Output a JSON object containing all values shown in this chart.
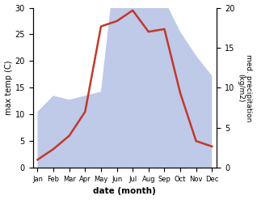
{
  "months": [
    "Jan",
    "Feb",
    "Mar",
    "Apr",
    "May",
    "Jun",
    "Jul",
    "Aug",
    "Sep",
    "Oct",
    "Nov",
    "Dec"
  ],
  "max_temp": [
    1.5,
    3.5,
    6.0,
    10.5,
    26.5,
    27.5,
    29.5,
    25.5,
    26.0,
    14.0,
    5.0,
    4.0
  ],
  "precipitation": [
    7.0,
    9.0,
    8.5,
    9.0,
    9.5,
    27.0,
    27.5,
    25.5,
    21.0,
    17.0,
    14.0,
    11.5
  ],
  "temp_color": "#c0392b",
  "precip_fill_color": "#bfc9e8",
  "ylabel_left": "max temp (C)",
  "ylabel_right": "med. precipitation\n(kg/m2)",
  "xlabel": "date (month)",
  "ylim_left": [
    0,
    30
  ],
  "ylim_right": [
    0,
    20
  ],
  "left_ticks": [
    0,
    5,
    10,
    15,
    20,
    25,
    30
  ],
  "right_ticks": [
    0,
    5,
    10,
    15,
    20
  ],
  "scale_factor": 1.5,
  "bg_color": "#ffffff"
}
